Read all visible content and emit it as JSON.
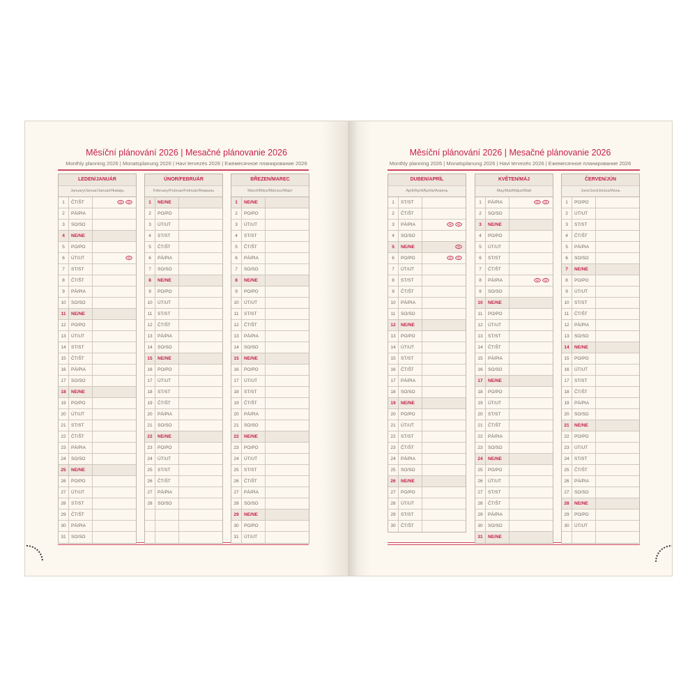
{
  "colors": {
    "accent": "#c41e4a",
    "page": "#fcf8f0",
    "header_bg": "#ede6dc",
    "lines": "#cfc7bc"
  },
  "left_page": {
    "title": "Měsíční plánování 2026 | Mesačné plánovanie 2026",
    "subtitle": "Monthly planning 2026 | Monatsplanung 2026 | Havi tervezés 2026 | Ежемесячное планирование 2026"
  },
  "right_page": {
    "title": "Měsíční plánování 2026 | Mesačné plánovanie 2026",
    "subtitle": "Monthly planning 2026 | Monatsplanung 2026 | Havi tervezés 2026 | Ежемесячное планирование 2026"
  },
  "months": [
    {
      "name": "LEDEN/JANUÁR",
      "sub": "January/Januar/Január/Январь",
      "icons": {
        "1": 2,
        "6": 1
      },
      "days": [
        [
          1,
          "ČT/ŠT"
        ],
        [
          2,
          "PÁ/PIA"
        ],
        [
          3,
          "SO/SO"
        ],
        [
          4,
          "NE/NE"
        ],
        [
          5,
          "PO/PO"
        ],
        [
          6,
          "ÚT/UT"
        ],
        [
          7,
          "ST/ST"
        ],
        [
          8,
          "ČT/ŠT"
        ],
        [
          9,
          "PÁ/PIA"
        ],
        [
          10,
          "SO/SO"
        ],
        [
          11,
          "NE/NE"
        ],
        [
          12,
          "PO/PO"
        ],
        [
          13,
          "ÚT/UT"
        ],
        [
          14,
          "ST/ST"
        ],
        [
          15,
          "ČT/ŠT"
        ],
        [
          16,
          "PÁ/PIA"
        ],
        [
          17,
          "SO/SO"
        ],
        [
          18,
          "NE/NE"
        ],
        [
          19,
          "PO/PO"
        ],
        [
          20,
          "ÚT/UT"
        ],
        [
          21,
          "ST/ST"
        ],
        [
          22,
          "ČT/ŠT"
        ],
        [
          23,
          "PÁ/PIA"
        ],
        [
          24,
          "SO/SO"
        ],
        [
          25,
          "NE/NE"
        ],
        [
          26,
          "PO/PO"
        ],
        [
          27,
          "ÚT/UT"
        ],
        [
          28,
          "ST/ST"
        ],
        [
          29,
          "ČT/ŠT"
        ],
        [
          30,
          "PÁ/PIA"
        ],
        [
          31,
          "SO/SO"
        ]
      ]
    },
    {
      "name": "ÚNOR/FEBRUÁR",
      "sub": "February/Februar/Február/Февраль",
      "icons": {},
      "days": [
        [
          1,
          "NE/NE"
        ],
        [
          2,
          "PO/PO"
        ],
        [
          3,
          "ÚT/UT"
        ],
        [
          4,
          "ST/ST"
        ],
        [
          5,
          "ČT/ŠT"
        ],
        [
          6,
          "PÁ/PIA"
        ],
        [
          7,
          "SO/SO"
        ],
        [
          8,
          "NE/NE"
        ],
        [
          9,
          "PO/PO"
        ],
        [
          10,
          "ÚT/UT"
        ],
        [
          11,
          "ST/ST"
        ],
        [
          12,
          "ČT/ŠT"
        ],
        [
          13,
          "PÁ/PIA"
        ],
        [
          14,
          "SO/SO"
        ],
        [
          15,
          "NE/NE"
        ],
        [
          16,
          "PO/PO"
        ],
        [
          17,
          "ÚT/UT"
        ],
        [
          18,
          "ST/ST"
        ],
        [
          19,
          "ČT/ŠT"
        ],
        [
          20,
          "PÁ/PIA"
        ],
        [
          21,
          "SO/SO"
        ],
        [
          22,
          "NE/NE"
        ],
        [
          23,
          "PO/PO"
        ],
        [
          24,
          "ÚT/UT"
        ],
        [
          25,
          "ST/ST"
        ],
        [
          26,
          "ČT/ŠT"
        ],
        [
          27,
          "PÁ/PIA"
        ],
        [
          28,
          "SO/SO"
        ],
        [
          "",
          ""
        ],
        [
          "",
          ""
        ],
        [
          "",
          ""
        ]
      ]
    },
    {
      "name": "BŘEZEN/MAREC",
      "sub": "March/März/Március/Март",
      "icons": {},
      "days": [
        [
          1,
          "NE/NE"
        ],
        [
          2,
          "PO/PO"
        ],
        [
          3,
          "ÚT/UT"
        ],
        [
          4,
          "ST/ST"
        ],
        [
          5,
          "ČT/ŠT"
        ],
        [
          6,
          "PÁ/PIA"
        ],
        [
          7,
          "SO/SO"
        ],
        [
          8,
          "NE/NE"
        ],
        [
          9,
          "PO/PO"
        ],
        [
          10,
          "ÚT/UT"
        ],
        [
          11,
          "ST/ST"
        ],
        [
          12,
          "ČT/ŠT"
        ],
        [
          13,
          "PÁ/PIA"
        ],
        [
          14,
          "SO/SO"
        ],
        [
          15,
          "NE/NE"
        ],
        [
          16,
          "PO/PO"
        ],
        [
          17,
          "ÚT/UT"
        ],
        [
          18,
          "ST/ST"
        ],
        [
          19,
          "ČT/ŠT"
        ],
        [
          20,
          "PÁ/PIA"
        ],
        [
          21,
          "SO/SO"
        ],
        [
          22,
          "NE/NE"
        ],
        [
          23,
          "PO/PO"
        ],
        [
          24,
          "ÚT/UT"
        ],
        [
          25,
          "ST/ST"
        ],
        [
          26,
          "ČT/ŠT"
        ],
        [
          27,
          "PÁ/PIA"
        ],
        [
          28,
          "SO/SO"
        ],
        [
          29,
          "NE/NE"
        ],
        [
          30,
          "PO/PO"
        ],
        [
          31,
          "ÚT/UT"
        ]
      ]
    },
    {
      "name": "DUBEN/APRÍL",
      "sub": "April/April/Április/Апрель",
      "icons": {
        "3": 2,
        "5": 1,
        "6": 2
      },
      "days": [
        [
          1,
          "ST/ST"
        ],
        [
          2,
          "ČT/ŠT"
        ],
        [
          3,
          "PÁ/PIA"
        ],
        [
          4,
          "SO/SO"
        ],
        [
          5,
          "NE/NE"
        ],
        [
          6,
          "PO/PO"
        ],
        [
          7,
          "ÚT/UT"
        ],
        [
          8,
          "ST/ST"
        ],
        [
          9,
          "ČT/ŠT"
        ],
        [
          10,
          "PÁ/PIA"
        ],
        [
          11,
          "SO/SO"
        ],
        [
          12,
          "NE/NE"
        ],
        [
          13,
          "PO/PO"
        ],
        [
          14,
          "ÚT/UT"
        ],
        [
          15,
          "ST/ST"
        ],
        [
          16,
          "ČT/ŠT"
        ],
        [
          17,
          "PÁ/PIA"
        ],
        [
          18,
          "SO/SO"
        ],
        [
          19,
          "NE/NE"
        ],
        [
          20,
          "PO/PO"
        ],
        [
          21,
          "ÚT/UT"
        ],
        [
          22,
          "ST/ST"
        ],
        [
          23,
          "ČT/ŠT"
        ],
        [
          24,
          "PÁ/PIA"
        ],
        [
          25,
          "SO/SO"
        ],
        [
          26,
          "NE/NE"
        ],
        [
          27,
          "PO/PO"
        ],
        [
          28,
          "ÚT/UT"
        ],
        [
          29,
          "ST/ST"
        ],
        [
          30,
          "ČT/ŠT"
        ]
      ]
    },
    {
      "name": "KVĚTEN/MÁJ",
      "sub": "May/Mai/Május/Май",
      "icons": {
        "1": 2,
        "8": 2
      },
      "days": [
        [
          1,
          "PÁ/PIA"
        ],
        [
          2,
          "SO/SO"
        ],
        [
          3,
          "NE/NE"
        ],
        [
          4,
          "PO/PO"
        ],
        [
          5,
          "ÚT/UT"
        ],
        [
          6,
          "ST/ST"
        ],
        [
          7,
          "ČT/ŠT"
        ],
        [
          8,
          "PÁ/PIA"
        ],
        [
          9,
          "SO/SO"
        ],
        [
          10,
          "NE/NE"
        ],
        [
          11,
          "PO/PO"
        ],
        [
          12,
          "ÚT/UT"
        ],
        [
          13,
          "ST/ST"
        ],
        [
          14,
          "ČT/ŠT"
        ],
        [
          15,
          "PÁ/PIA"
        ],
        [
          16,
          "SO/SO"
        ],
        [
          17,
          "NE/NE"
        ],
        [
          18,
          "PO/PO"
        ],
        [
          19,
          "ÚT/UT"
        ],
        [
          20,
          "ST/ST"
        ],
        [
          21,
          "ČT/ŠT"
        ],
        [
          22,
          "PÁ/PIA"
        ],
        [
          23,
          "SO/SO"
        ],
        [
          24,
          "NE/NE"
        ],
        [
          25,
          "PO/PO"
        ],
        [
          26,
          "ÚT/UT"
        ],
        [
          27,
          "ST/ST"
        ],
        [
          28,
          "ČT/ŠT"
        ],
        [
          29,
          "PÁ/PIA"
        ],
        [
          30,
          "SO/SO"
        ],
        [
          31,
          "NE/NE"
        ]
      ]
    },
    {
      "name": "ČERVEN/JÚN",
      "sub": "June/Juni/Június/Июнь",
      "icons": {},
      "days": [
        [
          1,
          "PO/PO"
        ],
        [
          2,
          "ÚT/UT"
        ],
        [
          3,
          "ST/ST"
        ],
        [
          4,
          "ČT/ŠT"
        ],
        [
          5,
          "PÁ/PIA"
        ],
        [
          6,
          "SO/SO"
        ],
        [
          7,
          "NE/NE"
        ],
        [
          8,
          "PO/PO"
        ],
        [
          9,
          "ÚT/UT"
        ],
        [
          10,
          "ST/ST"
        ],
        [
          11,
          "ČT/ŠT"
        ],
        [
          12,
          "PÁ/PIA"
        ],
        [
          13,
          "SO/SO"
        ],
        [
          14,
          "NE/NE"
        ],
        [
          15,
          "PO/PO"
        ],
        [
          16,
          "ÚT/UT"
        ],
        [
          17,
          "ST/ST"
        ],
        [
          18,
          "ČT/ŠT"
        ],
        [
          19,
          "PÁ/PIA"
        ],
        [
          20,
          "SO/SO"
        ],
        [
          21,
          "NE/NE"
        ],
        [
          22,
          "PO/PO"
        ],
        [
          23,
          "ÚT/UT"
        ],
        [
          24,
          "ST/ST"
        ],
        [
          25,
          "ČT/ŠT"
        ],
        [
          26,
          "PÁ/PIA"
        ],
        [
          27,
          "SO/SO"
        ],
        [
          28,
          "NE/NE"
        ],
        [
          29,
          "PO/PO"
        ],
        [
          30,
          "ÚT/UT"
        ],
        [
          "",
          ""
        ]
      ]
    }
  ]
}
